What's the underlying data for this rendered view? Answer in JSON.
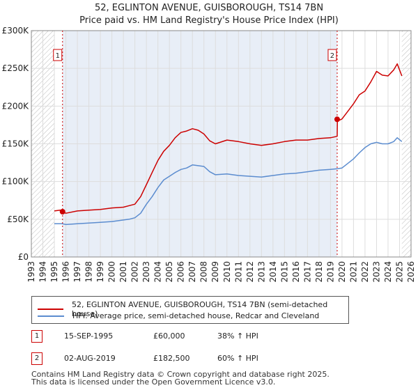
{
  "title_line1": "52, EGLINTON AVENUE, GUISBOROUGH, TS14 7BN",
  "title_line2": "Price paid vs. HM Land Registry's House Price Index (HPI)",
  "chart_data": {
    "type": "line",
    "x_range": [
      1993,
      2026
    ],
    "ylim": [
      0,
      300000
    ],
    "y_ticks": [
      0,
      50000,
      100000,
      150000,
      200000,
      250000,
      300000
    ],
    "y_tick_labels": [
      "£0",
      "£50K",
      "£100K",
      "£150K",
      "£200K",
      "£250K",
      "£300K"
    ],
    "x_ticks": [
      1993,
      1994,
      1995,
      1996,
      1997,
      1998,
      1999,
      2000,
      2001,
      2002,
      2003,
      2004,
      2005,
      2006,
      2007,
      2008,
      2009,
      2010,
      2011,
      2012,
      2013,
      2014,
      2015,
      2016,
      2017,
      2018,
      2019,
      2020,
      2021,
      2022,
      2023,
      2024,
      2025,
      2026
    ],
    "x_tick_labels": [
      "1993",
      "1994",
      "1995",
      "1996",
      "1997",
      "1998",
      "1999",
      "2000",
      "2001",
      "2002",
      "2003",
      "2004",
      "2005",
      "2006",
      "2007",
      "2008",
      "2009",
      "2010",
      "2011",
      "2012",
      "2013",
      "2014",
      "2015",
      "2016",
      "2017",
      "2018",
      "2019",
      "2020",
      "2021",
      "2022",
      "2023",
      "2024",
      "2025",
      "2026"
    ],
    "grid": true,
    "hatched_before": 1995.0,
    "hatched_after": 2025.2,
    "series": [
      {
        "name": "52, EGLINTON AVENUE, GUISBOROUGH, TS14 7BN (semi-detached house)",
        "color": "#cc0000",
        "x": [
          1995.0,
          1995.5,
          1995.7,
          1996,
          1997,
          1998,
          1999,
          2000,
          2001,
          2001.5,
          2002,
          2002.5,
          2003,
          2003.5,
          2004,
          2004.5,
          2005,
          2005.5,
          2006,
          2006.5,
          2007,
          2007.5,
          2008,
          2008.5,
          2009,
          2010,
          2011,
          2012,
          2013,
          2014,
          2015,
          2016,
          2017,
          2018,
          2019,
          2019.58,
          2019.6,
          2020,
          2020.5,
          2021,
          2021.5,
          2022,
          2022.5,
          2023,
          2023.5,
          2024,
          2024.5,
          2024.8,
          2025.2
        ],
        "y": [
          61000,
          62000,
          60000,
          58000,
          61000,
          62000,
          63000,
          65000,
          66000,
          68000,
          70000,
          80000,
          96000,
          112000,
          128000,
          140000,
          148000,
          158000,
          165000,
          167000,
          170000,
          168000,
          163000,
          154000,
          150000,
          155000,
          153000,
          150000,
          148000,
          150000,
          153000,
          155000,
          155000,
          157000,
          158000,
          160000,
          180000,
          183000,
          193000,
          203000,
          215000,
          220000,
          232000,
          246000,
          241000,
          240000,
          248000,
          256000,
          240000
        ]
      },
      {
        "name": "HPI: Average price, semi-detached house, Redcar and Cleveland",
        "color": "#5b8ccf",
        "x": [
          1995.0,
          1995.7,
          1996,
          1997,
          1998,
          1999,
          2000,
          2001,
          2001.5,
          2002,
          2002.5,
          2003,
          2003.5,
          2004,
          2004.5,
          2005,
          2005.5,
          2006,
          2006.5,
          2007,
          2007.5,
          2008,
          2008.5,
          2009,
          2010,
          2011,
          2012,
          2013,
          2014,
          2015,
          2016,
          2017,
          2018,
          2019,
          2019.6,
          2020,
          2020.5,
          2021,
          2021.5,
          2022,
          2022.5,
          2023,
          2023.5,
          2024,
          2024.5,
          2024.8,
          2025.2
        ],
        "y": [
          44000,
          44000,
          43000,
          44000,
          45000,
          46000,
          47000,
          49000,
          50000,
          52000,
          58000,
          70000,
          80000,
          92000,
          102000,
          107000,
          112000,
          116000,
          118000,
          122000,
          121000,
          120000,
          113000,
          109000,
          110000,
          108000,
          107000,
          106000,
          108000,
          110000,
          111000,
          113000,
          115000,
          116000,
          117000,
          118000,
          124000,
          130000,
          138000,
          145000,
          150000,
          152000,
          150000,
          150000,
          153000,
          158000,
          153000
        ]
      }
    ],
    "annotations": [
      {
        "label": "1",
        "x": 1995.71,
        "y": 60000
      },
      {
        "label": "2",
        "x": 2019.58,
        "y": 182500
      }
    ]
  },
  "legend": {
    "series1": "52, EGLINTON AVENUE, GUISBOROUGH, TS14 7BN (semi-detached house)",
    "series2": "HPI: Average price, semi-detached house, Redcar and Cleveland"
  },
  "sales": [
    {
      "num": "1",
      "date": "15-SEP-1995",
      "price": "£60,000",
      "hpi": "38% ↑ HPI"
    },
    {
      "num": "2",
      "date": "02-AUG-2019",
      "price": "£182,500",
      "hpi": "60% ↑ HPI"
    }
  ],
  "footer": {
    "line1": "Contains HM Land Registry data © Crown copyright and database right 2025.",
    "line2": "This data is licensed under the Open Government Licence v3.0."
  },
  "colors": {
    "property": "#cc0000",
    "hpi": "#5b8ccf",
    "grid": "#dddddd",
    "shade": "#e8eef7"
  }
}
